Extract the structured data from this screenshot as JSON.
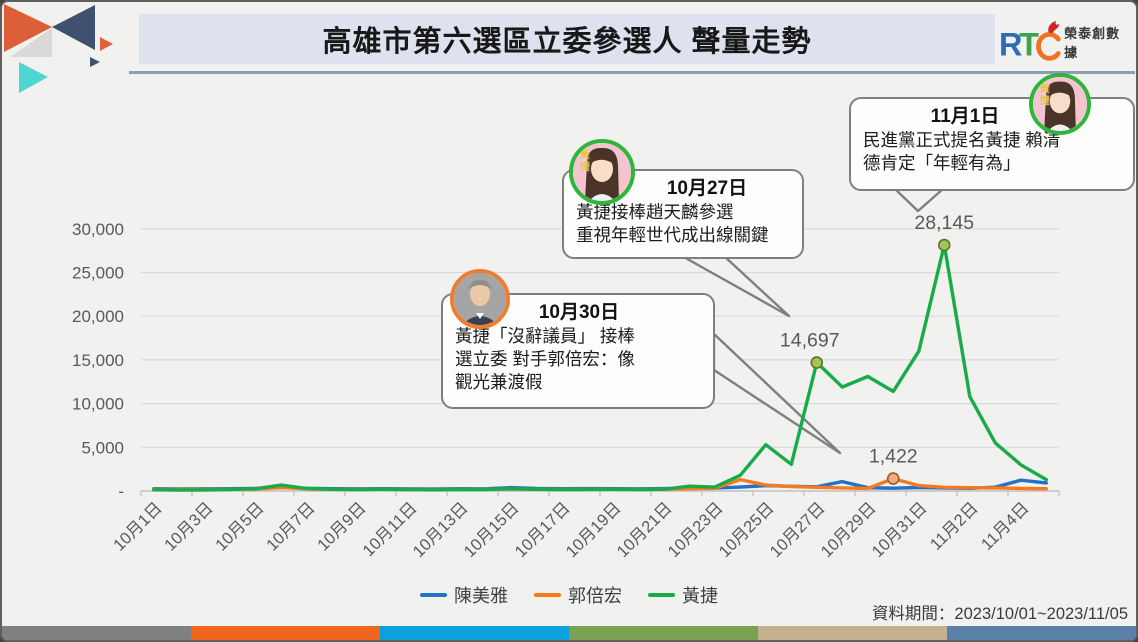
{
  "header": {
    "title": "高雄市第六選區立委參選人 聲量走勢",
    "rtc": {
      "r": "R",
      "t": "T",
      "c": "C",
      "company": "榮泰創數據"
    }
  },
  "chart_data": {
    "type": "line",
    "title": "高雄市第六選區立委參選人 聲量走勢",
    "x": [
      "10月1日",
      "10月2日",
      "10月3日",
      "10月4日",
      "10月5日",
      "10月6日",
      "10月7日",
      "10月8日",
      "10月9日",
      "10月10日",
      "10月11日",
      "10月12日",
      "10月13日",
      "10月14日",
      "10月15日",
      "10月16日",
      "10月17日",
      "10月18日",
      "10月19日",
      "10月20日",
      "10月21日",
      "10月22日",
      "10月23日",
      "10月24日",
      "10月25日",
      "10月26日",
      "10月27日",
      "10月28日",
      "10月29日",
      "10月30日",
      "10月31日",
      "11月1日",
      "11月2日",
      "11月3日",
      "11月4日",
      "11月5日"
    ],
    "x_axis_labels_shown": [
      "10月1日",
      "10月3日",
      "10月5日",
      "10月7日",
      "10月9日",
      "10月11日",
      "10月13日",
      "10月15日",
      "10月17日",
      "10月19日",
      "10月21日",
      "10月23日",
      "10月25日",
      "10月27日",
      "10月29日",
      "10月31日",
      "11月2日",
      "11月4日"
    ],
    "series": [
      {
        "name": "陳美雅",
        "color": "#2272c8",
        "values": [
          260,
          240,
          250,
          260,
          290,
          430,
          310,
          260,
          250,
          260,
          250,
          240,
          260,
          250,
          390,
          290,
          260,
          270,
          260,
          250,
          270,
          310,
          330,
          450,
          620,
          540,
          480,
          1080,
          380,
          320,
          400,
          360,
          310,
          430,
          1230,
          930
        ]
      },
      {
        "name": "郭倍宏",
        "color": "#f5791e",
        "values": [
          190,
          170,
          180,
          200,
          230,
          390,
          250,
          200,
          190,
          200,
          190,
          180,
          200,
          190,
          240,
          200,
          190,
          200,
          190,
          180,
          210,
          260,
          310,
          1310,
          680,
          500,
          420,
          350,
          300,
          1422,
          620,
          420,
          380,
          350,
          300,
          260
        ]
      },
      {
        "name": "黃捷",
        "color": "#17ab49",
        "values": [
          150,
          110,
          130,
          180,
          260,
          680,
          290,
          190,
          160,
          190,
          160,
          150,
          170,
          160,
          260,
          190,
          170,
          180,
          190,
          170,
          200,
          550,
          450,
          1800,
          5300,
          3050,
          14697,
          11900,
          13100,
          11400,
          16000,
          28145,
          10800,
          5500,
          3000,
          1300
        ]
      }
    ],
    "ylim": [
      0,
      30000
    ],
    "yticks": [
      0,
      5000,
      10000,
      15000,
      20000,
      25000,
      30000
    ],
    "ytick_labels": [
      "-",
      "5,000",
      "10,000",
      "15,000",
      "20,000",
      "25,000",
      "30,000"
    ],
    "grid": true,
    "legend_position": "bottom",
    "point_labels": [
      {
        "series_index": 2,
        "index": 26,
        "value": 14697,
        "label": "14,697"
      },
      {
        "series_index": 2,
        "index": 31,
        "value": 28145,
        "label": "28,145"
      },
      {
        "series_index": 1,
        "index": 29,
        "value": 1422,
        "label": "1,422"
      }
    ]
  },
  "annotations": [
    {
      "date": "10月27日",
      "person": "黃捷",
      "lines": [
        "黃捷接棒趙天麟參選",
        "重視年輕世代成出線關鍵"
      ]
    },
    {
      "date": "10月30日",
      "person": "郭倍宏",
      "lines": [
        "黃捷「沒辭議員」 接棒",
        "選立委 對手郭倍宏：像",
        "觀光兼渡假"
      ]
    },
    {
      "date": "11月1日",
      "person": "黃捷",
      "lines": [
        "民進黨正式提名黃捷 賴清",
        "德肯定「年輕有為」"
      ]
    }
  ],
  "footer": {
    "period": "資料期間：2023/10/01~2023/11/05",
    "stripe_colors": [
      "#808080",
      "#f1661f",
      "#0aa1dc",
      "#7ba052",
      "#c5b091",
      "#5b80a8"
    ]
  }
}
